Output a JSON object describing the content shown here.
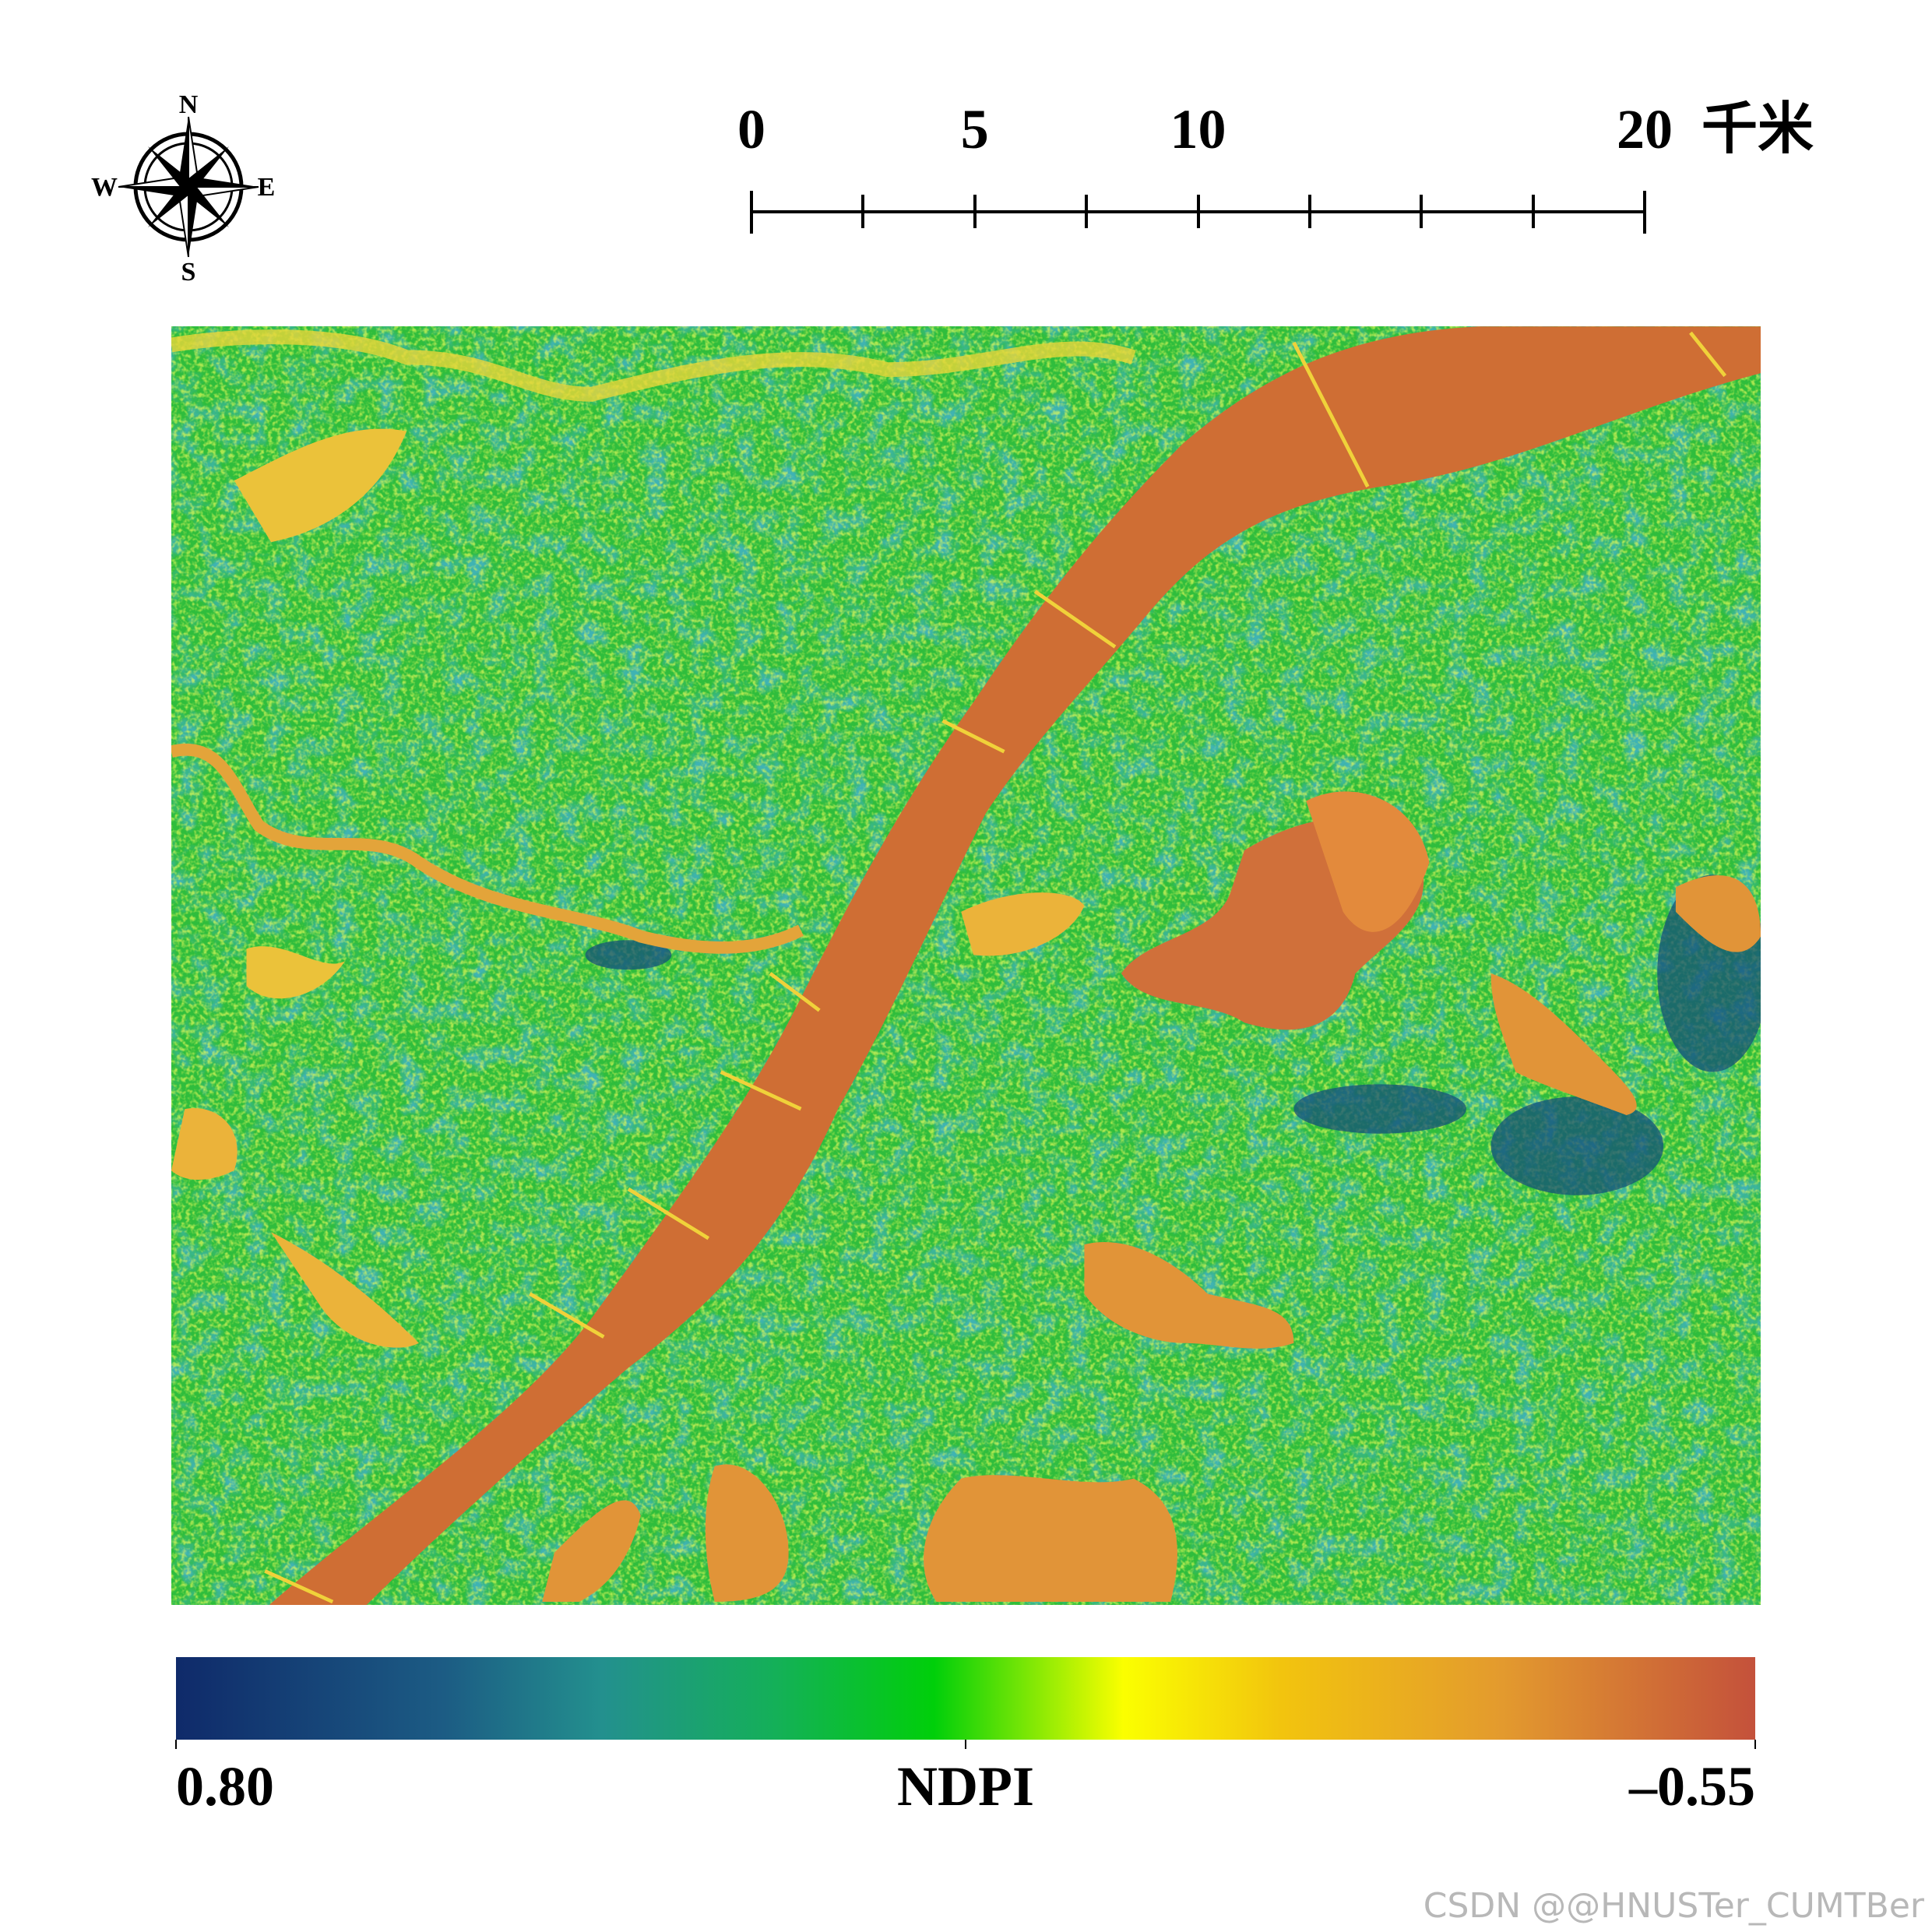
{
  "map": {
    "compass": {
      "n": "N",
      "s": "S",
      "w": "W",
      "e": "E"
    },
    "scale_bar": {
      "ticks": [
        0,
        5,
        10,
        20
      ],
      "unit": "千米"
    },
    "legend": {
      "title": "NDPI",
      "ticks": [
        {
          "value": 0.8,
          "label": "0.80"
        },
        {
          "value": -0.55,
          "label": "–0.55"
        }
      ]
    }
  },
  "watermark": "CSDN @@HNUSTer_CUMTBer"
}
